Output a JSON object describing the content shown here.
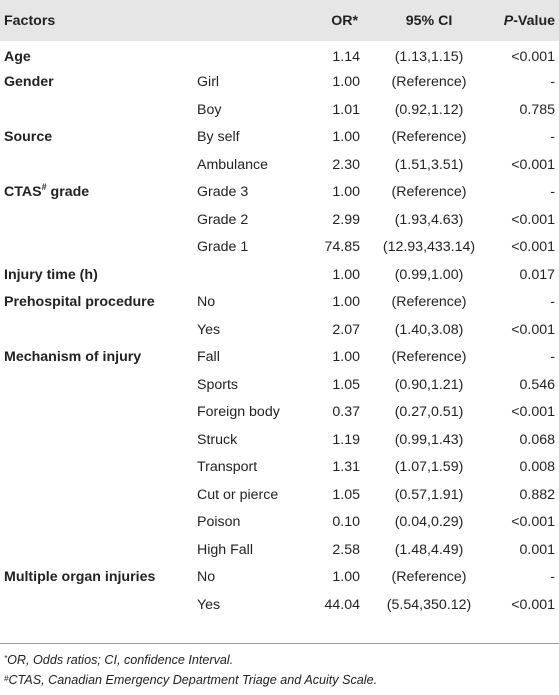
{
  "table": {
    "headers": {
      "factors": "Factors",
      "or": "OR*",
      "ci": "95% CI",
      "p_italic": "P",
      "p_rest": "-Value"
    },
    "rows": [
      {
        "factor": "Age",
        "factor_sup": "",
        "level": "",
        "or": "1.14",
        "ci": "(1.13,1.15)",
        "p": "<0.001"
      },
      {
        "factor": "Gender",
        "factor_sup": "",
        "level": "Girl",
        "or": "1.00",
        "ci": "(Reference)",
        "p": "-"
      },
      {
        "factor": "",
        "factor_sup": "",
        "level": "Boy",
        "or": "1.01",
        "ci": "(0.92,1.12)",
        "p": "0.785"
      },
      {
        "factor": "Source",
        "factor_sup": "",
        "level": "By self",
        "or": "1.00",
        "ci": "(Reference)",
        "p": "-"
      },
      {
        "factor": "",
        "factor_sup": "",
        "level": "Ambulance",
        "or": "2.30",
        "ci": "(1.51,3.51)",
        "p": "<0.001"
      },
      {
        "factor": "CTAS",
        "factor_sup": "#",
        "factor_after": " grade",
        "level": "Grade 3",
        "or": "1.00",
        "ci": "(Reference)",
        "p": "-"
      },
      {
        "factor": "",
        "factor_sup": "",
        "level": "Grade 2",
        "or": "2.99",
        "ci": "(1.93,4.63)",
        "p": "<0.001"
      },
      {
        "factor": "",
        "factor_sup": "",
        "level": "Grade 1",
        "or": "74.85",
        "ci": "(12.93,433.14)",
        "p": "<0.001"
      },
      {
        "factor": "Injury time (h)",
        "factor_sup": "",
        "level": "",
        "or": "1.00",
        "ci": "(0.99,1.00)",
        "p": "0.017"
      },
      {
        "factor": "Prehospital procedure",
        "factor_sup": "",
        "level": "No",
        "or": "1.00",
        "ci": "(Reference)",
        "p": "-"
      },
      {
        "factor": "",
        "factor_sup": "",
        "level": "Yes",
        "or": "2.07",
        "ci": "(1.40,3.08)",
        "p": "<0.001"
      },
      {
        "factor": "Mechanism of injury",
        "factor_sup": "",
        "level": "Fall",
        "or": "1.00",
        "ci": "(Reference)",
        "p": "-"
      },
      {
        "factor": "",
        "factor_sup": "",
        "level": "Sports",
        "or": "1.05",
        "ci": "(0.90,1.21)",
        "p": "0.546"
      },
      {
        "factor": "",
        "factor_sup": "",
        "level": "Foreign body",
        "or": "0.37",
        "ci": "(0.27,0.51)",
        "p": "<0.001"
      },
      {
        "factor": "",
        "factor_sup": "",
        "level": "Struck",
        "or": "1.19",
        "ci": "(0.99,1.43)",
        "p": "0.068"
      },
      {
        "factor": "",
        "factor_sup": "",
        "level": "Transport",
        "or": "1.31",
        "ci": "(1.07,1.59)",
        "p": "0.008"
      },
      {
        "factor": "",
        "factor_sup": "",
        "level": "Cut or pierce",
        "or": "1.05",
        "ci": "(0.57,1.91)",
        "p": "0.882"
      },
      {
        "factor": "",
        "factor_sup": "",
        "level": "Poison",
        "or": "0.10",
        "ci": "(0.04,0.29)",
        "p": "<0.001"
      },
      {
        "factor": "",
        "factor_sup": "",
        "level": "High Fall",
        "or": "2.58",
        "ci": "(1.48,4.49)",
        "p": "0.001"
      },
      {
        "factor": "Multiple organ injuries",
        "factor_sup": "",
        "level": "No",
        "or": "1.00",
        "ci": "(Reference)",
        "p": "-"
      },
      {
        "factor": "",
        "factor_sup": "",
        "level": "Yes",
        "or": "44.04",
        "ci": "(5.54,350.12)",
        "p": "<0.001"
      }
    ]
  },
  "footnotes": {
    "note1_mark": "*",
    "note1_text": "OR, Odds ratios; CI, confidence Interval.",
    "note2_mark": "#",
    "note2_text": "CTAS, Canadian Emergency Department Triage and Acuity Scale."
  },
  "colors": {
    "header_bg": "#e6e6e6",
    "text": "#222222",
    "rule": "#999999"
  }
}
